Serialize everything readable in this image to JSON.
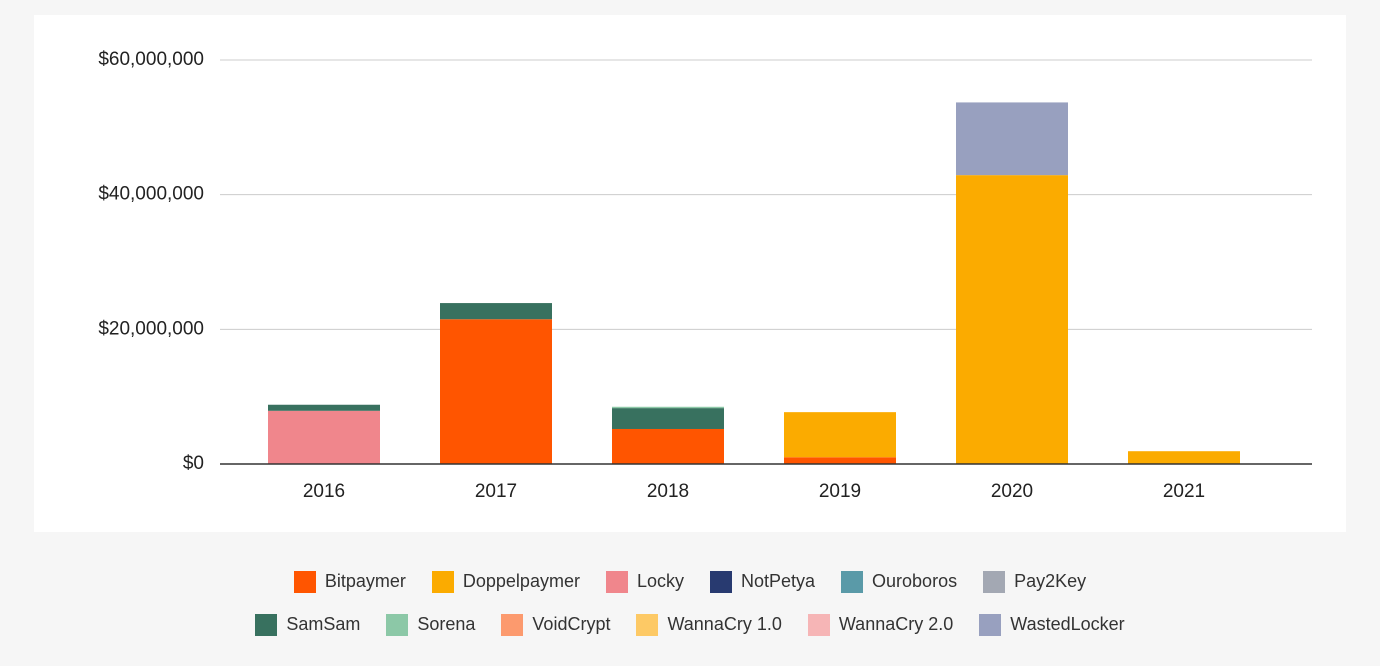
{
  "chart_data": {
    "type": "bar",
    "stacked": true,
    "categories": [
      "2016",
      "2017",
      "2018",
      "2019",
      "2020",
      "2021"
    ],
    "ylim": [
      0,
      60000000
    ],
    "yticks": [
      {
        "value": 0,
        "label": "$0"
      },
      {
        "value": 20000000,
        "label": "$20,000,000"
      },
      {
        "value": 40000000,
        "label": "$40,000,000"
      },
      {
        "value": 60000000,
        "label": "$60,000,000"
      }
    ],
    "grid": true,
    "legend": "bottom",
    "series": [
      {
        "name": "Bitpaymer",
        "color": "#ff5500",
        "values": [
          0,
          21500000,
          5200000,
          1000000,
          0,
          0
        ]
      },
      {
        "name": "Doppelpaymer",
        "color": "#fbab00",
        "values": [
          0,
          0,
          0,
          6700000,
          42900000,
          1900000
        ]
      },
      {
        "name": "Locky",
        "color": "#f0868c",
        "values": [
          7900000,
          0,
          0,
          0,
          0,
          0
        ]
      },
      {
        "name": "NotPetya",
        "color": "#283a70",
        "values": [
          0,
          0,
          0,
          0,
          0,
          0
        ]
      },
      {
        "name": "Ouroboros",
        "color": "#5a9aa8",
        "values": [
          0,
          0,
          0,
          0,
          0,
          0
        ]
      },
      {
        "name": "Pay2Key",
        "color": "#a3a8b3",
        "values": [
          0,
          0,
          0,
          0,
          0,
          0
        ]
      },
      {
        "name": "SamSam",
        "color": "#38715f",
        "values": [
          900000,
          2400000,
          3100000,
          0,
          0,
          0
        ]
      },
      {
        "name": "Sorena",
        "color": "#8cc8a7",
        "values": [
          0,
          0,
          200000,
          0,
          0,
          0
        ]
      },
      {
        "name": "VoidCrypt",
        "color": "#fc9a6e",
        "values": [
          0,
          0,
          0,
          0,
          0,
          0
        ]
      },
      {
        "name": "WannaCry 1.0",
        "color": "#fdc965",
        "values": [
          0,
          0,
          0,
          0,
          0,
          0
        ]
      },
      {
        "name": "WannaCry 2.0",
        "color": "#f6b5b6",
        "values": [
          0,
          0,
          0,
          0,
          0,
          0
        ]
      },
      {
        "name": "WastedLocker",
        "color": "#98a0bf",
        "values": [
          0,
          0,
          0,
          0,
          10800000,
          0
        ]
      }
    ]
  }
}
